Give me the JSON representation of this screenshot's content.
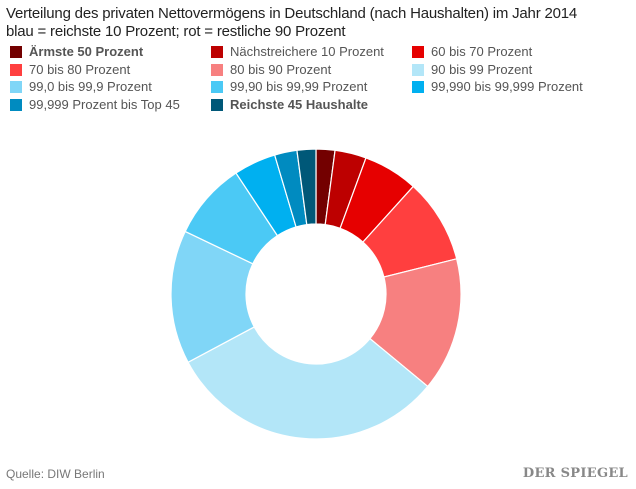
{
  "chart_data": {
    "type": "pie",
    "donut": true,
    "title": "Verteilung des privaten Nettovermögens in Deutschland (nach Haushalten) im Jahr 2014",
    "subtitle": "blau = reichste 10 Prozent; rot = restliche 90 Prozent",
    "legend_position": "top",
    "unit": "percent",
    "slices": [
      {
        "label": "Ärmste 50 Prozent",
        "value": 2.1,
        "color": "#730000",
        "bold": true
      },
      {
        "label": "Nächstreichere 10 Prozent",
        "value": 3.5,
        "color": "#bd0000"
      },
      {
        "label": "60 bis 70 Prozent",
        "value": 6.1,
        "color": "#e60000"
      },
      {
        "label": "70 bis 80 Prozent",
        "value": 9.4,
        "color": "#ff3f3f"
      },
      {
        "label": "80 bis 90 Prozent",
        "value": 14.9,
        "color": "#f78080"
      },
      {
        "label": "90 bis 99 Prozent",
        "value": 31.2,
        "color": "#b3e6f8"
      },
      {
        "label": "99,0 bis 99,9 Prozent",
        "value": 14.9,
        "color": "#80d6f7"
      },
      {
        "label": "99,90 bis 99,99 Prozent",
        "value": 8.6,
        "color": "#4bc9f5"
      },
      {
        "label": "99,990 bis 99,999 Prozent",
        "value": 4.7,
        "color": "#00b0f0"
      },
      {
        "label": "99,999 Prozent bis Top 45",
        "value": 2.5,
        "color": "#008bc0"
      },
      {
        "label": "Reichste 45 Haushalte",
        "value": 2.1,
        "color": "#005878",
        "bold": true
      }
    ]
  },
  "footer": {
    "source": "Quelle: DIW Berlin",
    "logo": "DER SPIEGEL"
  }
}
